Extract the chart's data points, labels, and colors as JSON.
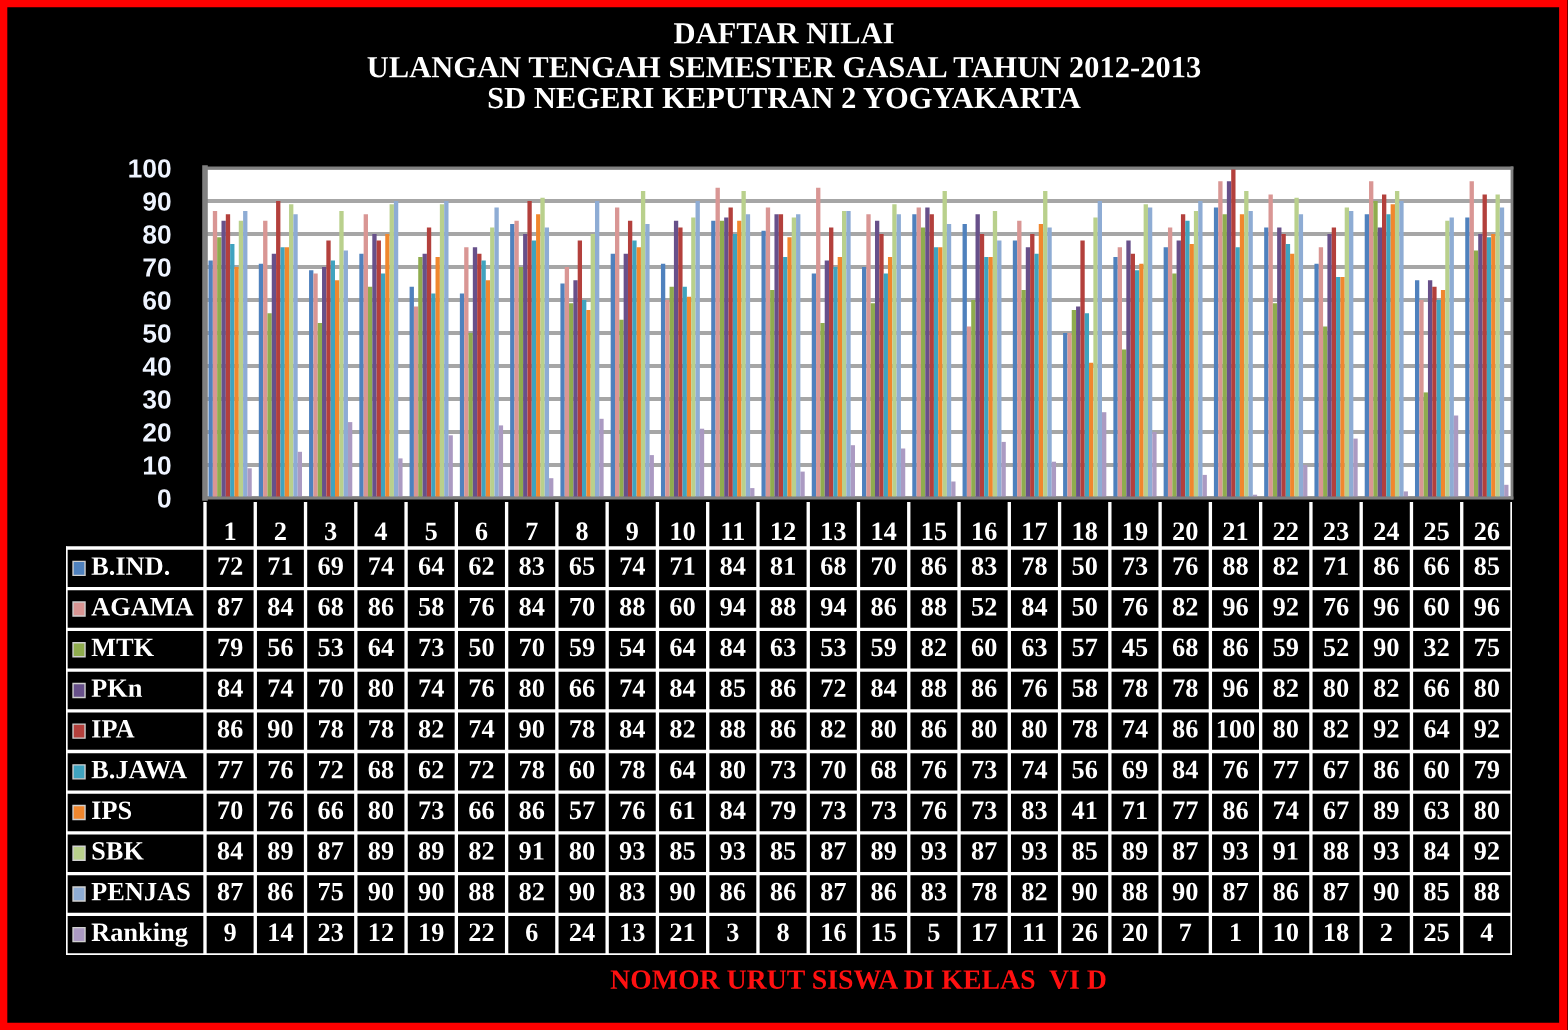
{
  "chart_data": {
    "type": "bar",
    "title": "DAFTAR NILAI",
    "subtitle": "ULANGAN TENGAH SEMESTER GASAL TAHUN 2012-2013\nSD NEGERI KEPUTRAN 2 YOGYAKARTA",
    "annotations": [
      "NOMOR URUT SISWA DI KELAS  VI D"
    ],
    "categories": [
      "1",
      "2",
      "3",
      "4",
      "5",
      "6",
      "7",
      "8",
      "9",
      "10",
      "11",
      "12",
      "13",
      "14",
      "15",
      "16",
      "17",
      "18",
      "19",
      "20",
      "21",
      "22",
      "23",
      "24",
      "25",
      "26"
    ],
    "series": [
      {
        "name": "B.IND.",
        "color": "#4f81bd",
        "values": [
          72,
          71,
          69,
          74,
          64,
          62,
          83,
          65,
          74,
          71,
          84,
          81,
          68,
          70,
          86,
          83,
          78,
          50,
          73,
          76,
          88,
          82,
          71,
          86,
          66,
          85
        ]
      },
      {
        "name": "AGAMA",
        "color": "#d99694",
        "values": [
          87,
          84,
          68,
          86,
          58,
          76,
          84,
          70,
          88,
          60,
          94,
          88,
          94,
          86,
          88,
          52,
          84,
          50,
          76,
          82,
          96,
          92,
          76,
          96,
          60,
          96
        ]
      },
      {
        "name": "MTK",
        "color": "#8fac4e",
        "values": [
          79,
          56,
          53,
          64,
          73,
          50,
          70,
          59,
          54,
          64,
          84,
          63,
          53,
          59,
          82,
          60,
          63,
          57,
          45,
          68,
          86,
          59,
          52,
          90,
          32,
          75
        ]
      },
      {
        "name": "PKn",
        "color": "#67508a",
        "values": [
          84,
          74,
          70,
          80,
          74,
          76,
          80,
          66,
          74,
          84,
          85,
          86,
          72,
          84,
          88,
          86,
          76,
          58,
          78,
          78,
          96,
          82,
          80,
          82,
          66,
          80
        ]
      },
      {
        "name": "IPA",
        "color": "#b3403c",
        "values": [
          86,
          90,
          78,
          78,
          82,
          74,
          90,
          78,
          84,
          82,
          88,
          86,
          82,
          80,
          86,
          80,
          80,
          78,
          74,
          86,
          100,
          80,
          82,
          92,
          64,
          92
        ]
      },
      {
        "name": "B.JAWA",
        "color": "#3fa3bf",
        "values": [
          77,
          76,
          72,
          68,
          62,
          72,
          78,
          60,
          78,
          64,
          80,
          73,
          70,
          68,
          76,
          73,
          74,
          56,
          69,
          84,
          76,
          77,
          67,
          86,
          60,
          79
        ]
      },
      {
        "name": "IPS",
        "color": "#f0872e",
        "values": [
          70,
          76,
          66,
          80,
          73,
          66,
          86,
          57,
          76,
          61,
          84,
          79,
          73,
          73,
          76,
          73,
          83,
          41,
          71,
          77,
          86,
          74,
          67,
          89,
          63,
          80
        ]
      },
      {
        "name": "SBK",
        "color": "#b9d08c",
        "values": [
          84,
          89,
          87,
          89,
          89,
          82,
          91,
          80,
          93,
          85,
          93,
          85,
          87,
          89,
          93,
          87,
          93,
          85,
          89,
          87,
          93,
          91,
          88,
          93,
          84,
          92
        ]
      },
      {
        "name": "PENJAS",
        "color": "#8eacd4",
        "values": [
          87,
          86,
          75,
          90,
          90,
          88,
          82,
          90,
          83,
          90,
          86,
          86,
          87,
          86,
          83,
          78,
          82,
          90,
          88,
          90,
          87,
          86,
          87,
          90,
          85,
          88
        ]
      },
      {
        "name": "Ranking",
        "color": "#ab9ac2",
        "values": [
          9,
          14,
          23,
          12,
          19,
          22,
          6,
          24,
          13,
          21,
          3,
          8,
          16,
          15,
          5,
          17,
          11,
          26,
          20,
          7,
          1,
          10,
          18,
          2,
          25,
          4
        ]
      }
    ],
    "ylim": [
      0,
      100
    ],
    "yticks": [
      0,
      10,
      20,
      30,
      40,
      50,
      60,
      70,
      80,
      90,
      100
    ],
    "grid": "y",
    "legend": "bottom",
    "data_labels": true
  }
}
